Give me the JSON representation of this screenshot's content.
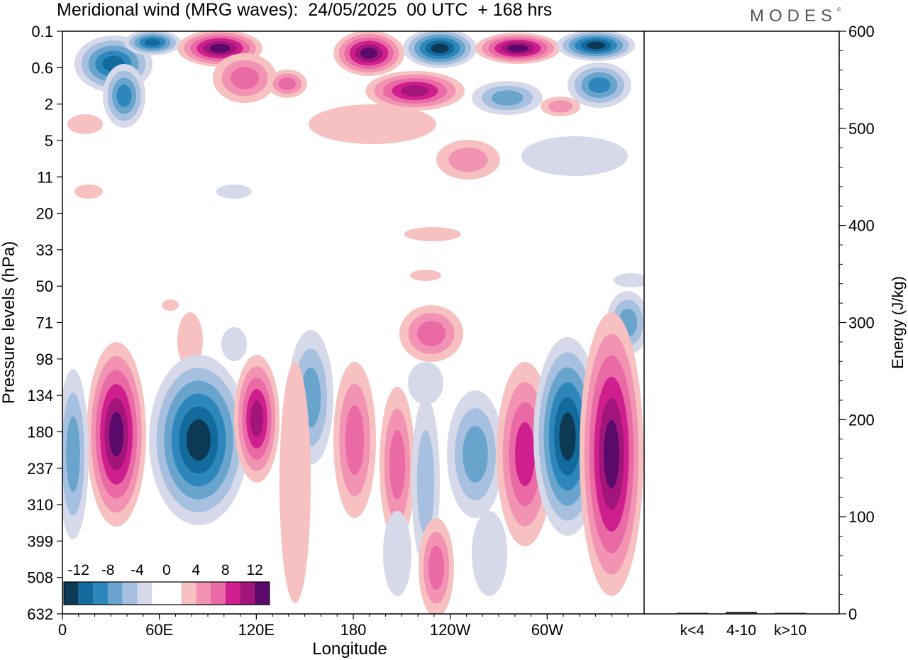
{
  "title": "Meridional wind (MRG waves):  24/05/2025  00 UTC  + 168 hrs",
  "brand": "MODES",
  "brand_mark": "©",
  "chart_data": [
    {
      "type": "heatmap",
      "title": "Meridional wind (MRG waves):  24/05/2025  00 UTC  + 168 hrs",
      "xlabel": "Longitude",
      "ylabel": "Pressure levels (hPa)",
      "x_ticks": [
        "0",
        "60E",
        "120E",
        "180",
        "120W",
        "60W"
      ],
      "y_ticks": [
        "0.1",
        "0.6",
        "2",
        "5",
        "11",
        "20",
        "33",
        "50",
        "71",
        "98",
        "134",
        "180",
        "237",
        "310",
        "399",
        "508",
        "632"
      ],
      "colorbar": {
        "labels": [
          "-12",
          "-8",
          "-4",
          "0",
          "4",
          "8",
          "12"
        ],
        "colors": [
          "#0c3a55",
          "#136b9d",
          "#2d87bd",
          "#69a4cd",
          "#a8c0df",
          "#d6d9ea",
          "#ffffff",
          "#ffffff",
          "#f7c1c1",
          "#f293b4",
          "#e96aa4",
          "#cf1f8e",
          "#a2157a",
          "#5a0a6b"
        ]
      },
      "grid": false
    },
    {
      "type": "bar",
      "categories": [
        "k<4",
        "4-10",
        "k>10"
      ],
      "values": [
        1,
        2,
        1
      ],
      "ylabel": "Energy (J/kg)",
      "ylim": [
        0,
        600
      ],
      "y_ticks": [
        "0",
        "100",
        "200",
        "300",
        "400",
        "500",
        "600"
      ],
      "grid": false
    }
  ]
}
